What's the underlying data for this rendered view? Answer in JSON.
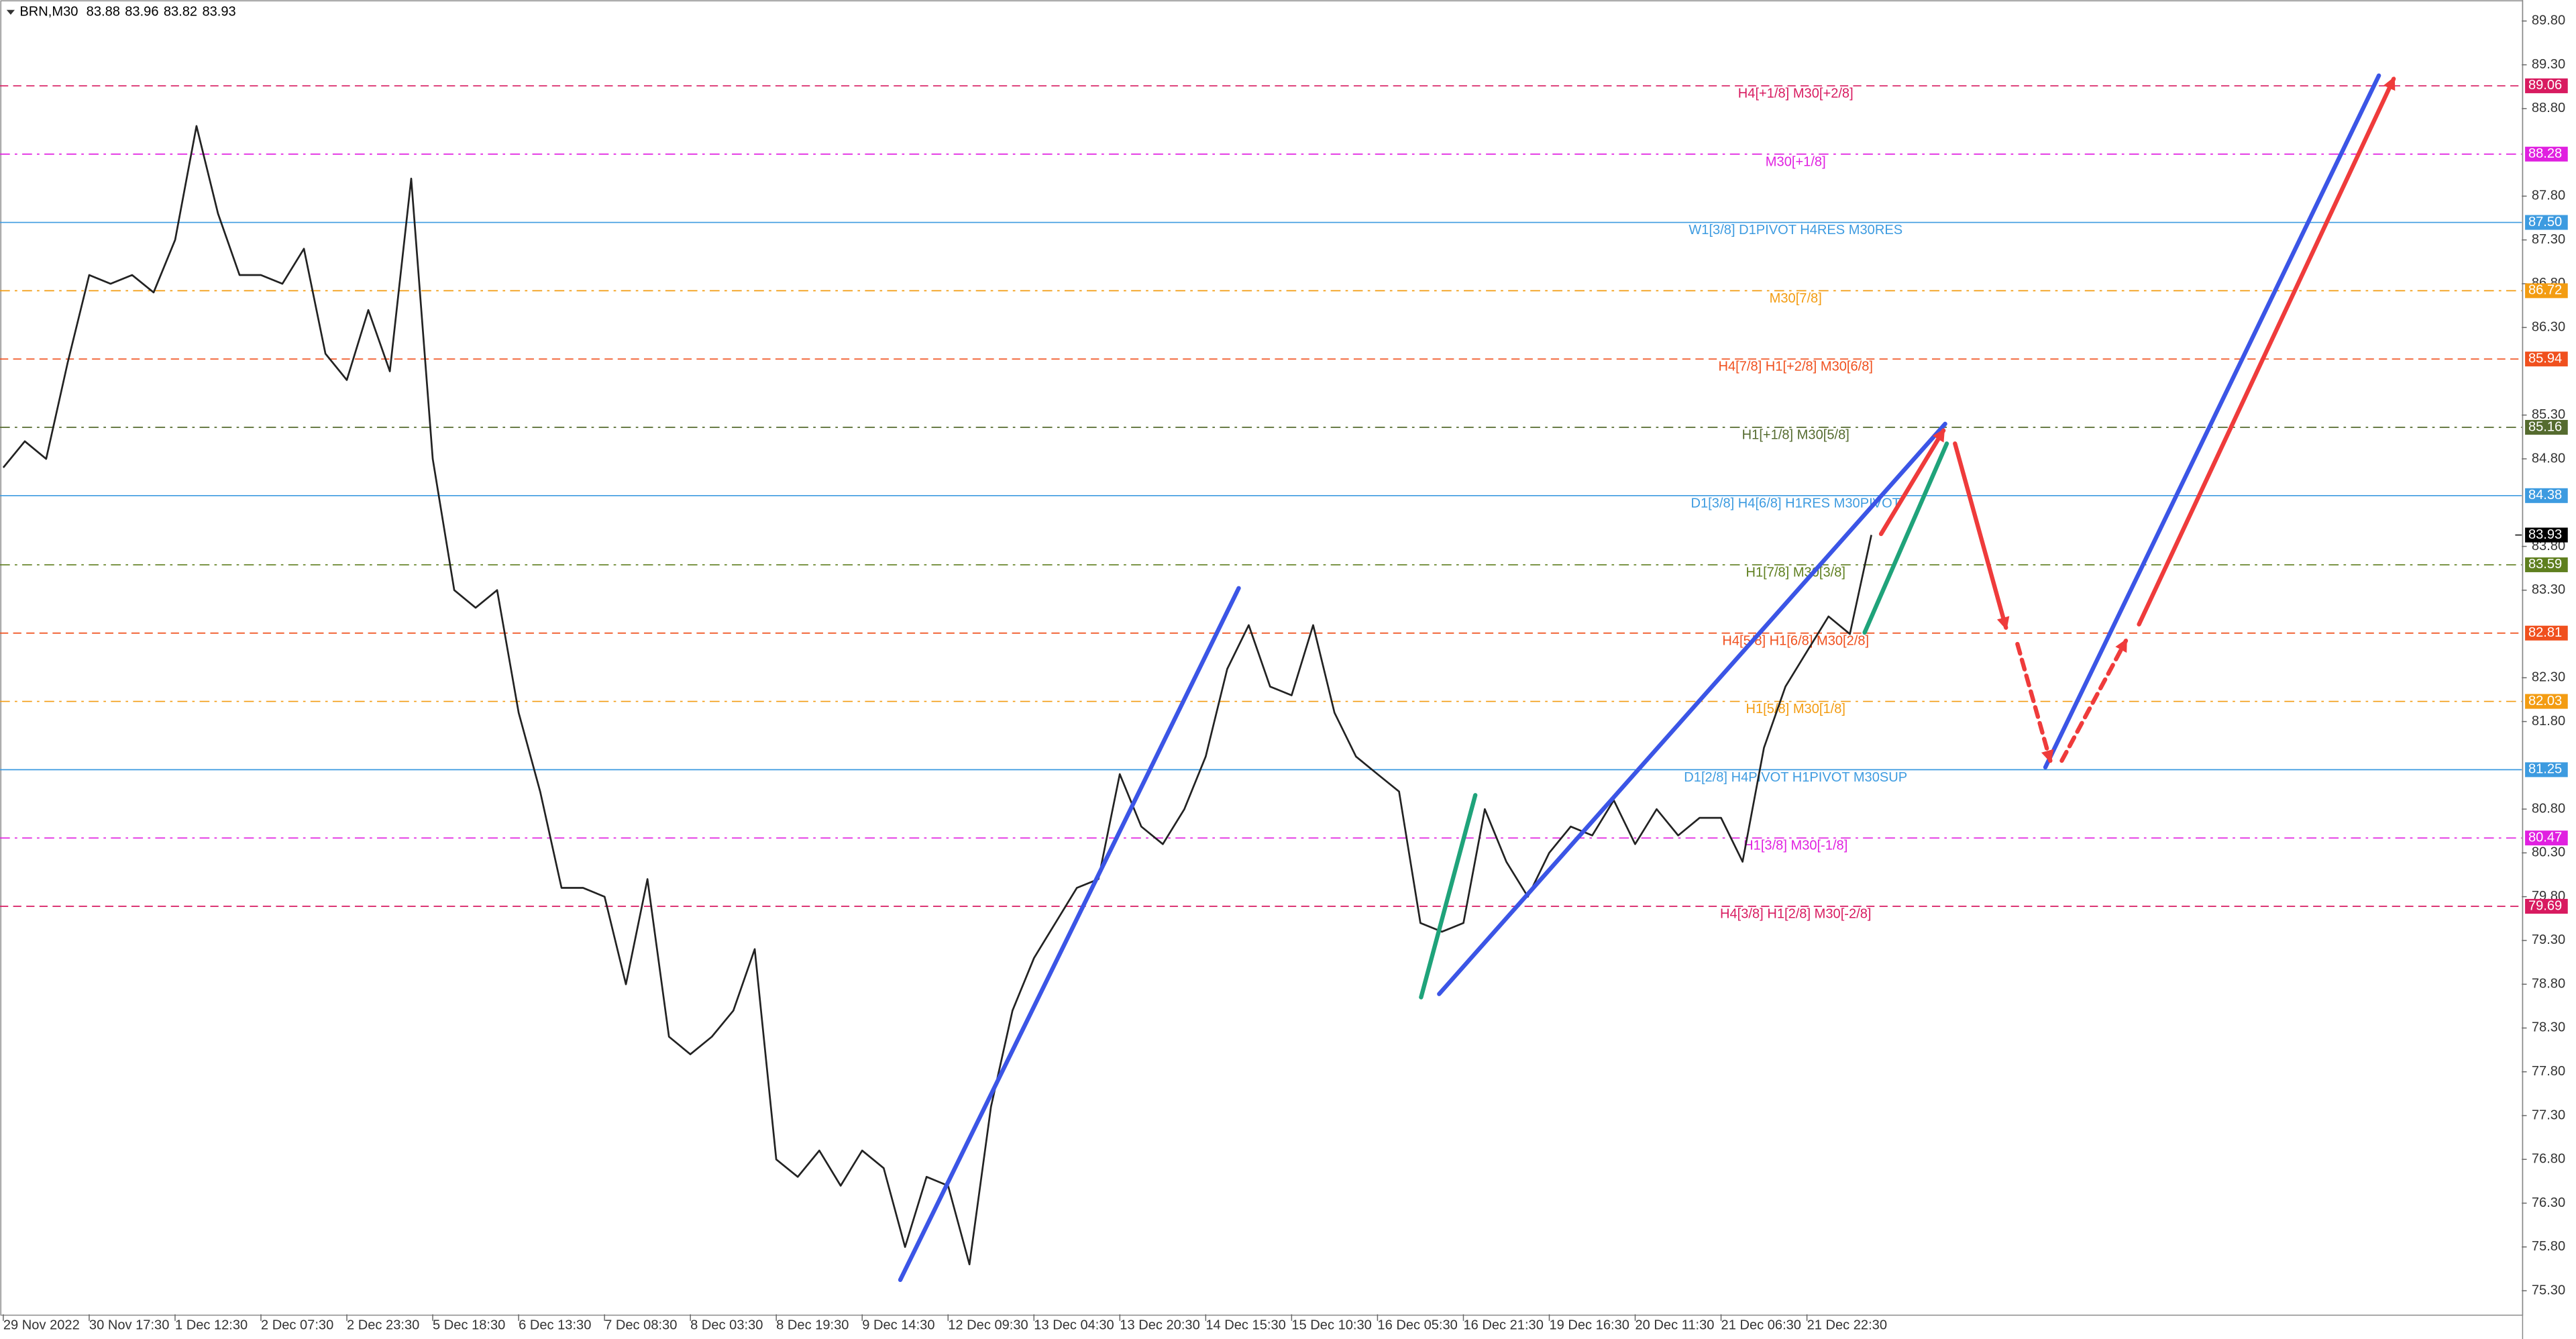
{
  "chart_data": {
    "type": "line",
    "title": "BRN,M30",
    "last_bar": {
      "open": 83.88,
      "high": 83.96,
      "low": 83.82,
      "close": 83.93
    },
    "current_price": 83.93,
    "ylim": [
      75.03,
      90.04
    ],
    "yticks": [
      {
        "value": 89.8,
        "label": "89.80"
      },
      {
        "value": 89.3,
        "label": "89.30"
      },
      {
        "value": 88.8,
        "label": "88.80"
      },
      {
        "value": 87.8,
        "label": "87.80"
      },
      {
        "value": 87.3,
        "label": "87.30"
      },
      {
        "value": 86.8,
        "label": "86.80"
      },
      {
        "value": 86.3,
        "label": "86.30"
      },
      {
        "value": 85.3,
        "label": "85.30"
      },
      {
        "value": 84.8,
        "label": "84.80"
      },
      {
        "value": 83.8,
        "label": "83.80"
      },
      {
        "value": 83.3,
        "label": "83.30"
      },
      {
        "value": 82.3,
        "label": "82.30"
      },
      {
        "value": 81.8,
        "label": "81.80"
      },
      {
        "value": 80.8,
        "label": "80.80"
      },
      {
        "value": 80.3,
        "label": "80.30"
      },
      {
        "value": 79.8,
        "label": "79.80"
      },
      {
        "value": 79.3,
        "label": "79.30"
      },
      {
        "value": 78.8,
        "label": "78.80"
      },
      {
        "value": 78.3,
        "label": "78.30"
      },
      {
        "value": 77.8,
        "label": "77.80"
      },
      {
        "value": 77.3,
        "label": "77.30"
      },
      {
        "value": 76.8,
        "label": "76.80"
      },
      {
        "value": 76.3,
        "label": "76.30"
      },
      {
        "value": 75.8,
        "label": "75.80"
      },
      {
        "value": 75.3,
        "label": "75.30"
      }
    ],
    "categories": [
      "29 Nov 2022",
      null,
      null,
      null,
      "30 Nov 17:30",
      null,
      null,
      null,
      "1 Dec 12:30",
      null,
      null,
      null,
      "2 Dec 07:30",
      null,
      null,
      null,
      "2 Dec 23:30",
      null,
      null,
      null,
      "5 Dec 18:30",
      null,
      null,
      null,
      "6 Dec 13:30",
      null,
      null,
      null,
      "7 Dec 08:30",
      null,
      null,
      null,
      "8 Dec 03:30",
      null,
      null,
      null,
      "8 Dec 19:30",
      null,
      null,
      null,
      "9 Dec 14:30",
      null,
      null,
      null,
      "12 Dec 09:30",
      null,
      null,
      null,
      "13 Dec 04:30",
      null,
      null,
      null,
      "13 Dec 20:30",
      null,
      null,
      null,
      "14 Dec 15:30",
      null,
      null,
      null,
      "15 Dec 10:30",
      null,
      null,
      null,
      "16 Dec 05:30",
      null,
      null,
      null,
      "16 Dec 21:30",
      null,
      null,
      null,
      "19 Dec 16:30",
      null,
      null,
      null,
      "20 Dec 11:30",
      null,
      null,
      null,
      "21 Dec 06:30",
      null,
      null,
      null,
      "21 Dec 22:30",
      null,
      null,
      null
    ],
    "series": [
      {
        "name": "BRN",
        "color": "#222222",
        "values": [
          84.7,
          85.0,
          84.8,
          85.9,
          86.9,
          86.8,
          86.9,
          86.7,
          87.3,
          88.6,
          87.6,
          86.9,
          86.9,
          86.8,
          87.2,
          86.0,
          85.7,
          86.5,
          85.8,
          88.0,
          84.8,
          83.3,
          83.1,
          83.3,
          81.9,
          81.0,
          79.9,
          79.9,
          79.8,
          78.8,
          80.0,
          78.2,
          78.0,
          78.2,
          78.5,
          79.2,
          76.8,
          76.6,
          76.9,
          76.5,
          76.9,
          76.7,
          75.8,
          76.6,
          76.5,
          75.6,
          77.4,
          78.5,
          79.1,
          79.5,
          79.9,
          80.0,
          81.2,
          80.6,
          80.4,
          80.8,
          81.4,
          82.4,
          82.9,
          82.2,
          82.1,
          82.9,
          81.9,
          81.4,
          81.2,
          81.0,
          79.5,
          79.4,
          79.5,
          80.8,
          80.2,
          79.8,
          80.3,
          80.6,
          80.5,
          80.9,
          80.4,
          80.8,
          80.5,
          80.7,
          80.7,
          80.2,
          81.5,
          82.2,
          82.6,
          83.0,
          82.8,
          83.93
        ]
      }
    ],
    "levels": [
      {
        "label": "H4[+1/8] M30[+2/8]",
        "price": 89.06,
        "color": "#d81b60",
        "style": "dash"
      },
      {
        "label": "M30[+1/8]",
        "price": 88.28,
        "color": "#e020e0",
        "style": "dashdot"
      },
      {
        "label": "W1[3/8] D1PIVOT H4RES M30RES",
        "price": {
          "value": 87.5,
          "label": "87.50"
        },
        "color": "#3d9be0",
        "style": "solid"
      },
      {
        "label": "M30[7/8]",
        "price": 86.72,
        "color": "#f39c12",
        "style": "dashdot"
      },
      {
        "label": "H4[7/8] H1[+2/8] M30[6/8]",
        "price": 85.94,
        "color": "#f0501e",
        "style": "dash"
      },
      {
        "label": "H1[+1/8] M30[5/8]",
        "price": 85.16,
        "color": "#556b2f",
        "style": "dashdot"
      },
      {
        "label": "D1[3/8] H4[6/8] H1RES M30PIVOT",
        "price": 84.38,
        "color": "#3d9be0",
        "style": "solid"
      },
      {
        "label": "H1[7/8] M30[3/8]",
        "price": 83.59,
        "color": "#5f7f1f",
        "style": "dashdot"
      },
      {
        "label": "H4[5/8] H1[6/8] M30[2/8]",
        "price": 82.81,
        "color": "#f0501e",
        "style": "dash"
      },
      {
        "label": "H1[5/8] M30[1/8]",
        "price": 82.03,
        "color": "#f39c12",
        "style": "dashdot"
      },
      {
        "label": "D1[2/8] H4PIVOT H1PIVOT M30SUP",
        "price": 81.25,
        "color": "#3d9be0",
        "style": "solid"
      },
      {
        "label": "H1[3/8] M30[-1/8]",
        "price": 80.47,
        "color": "#e020e0",
        "style": "dashdot"
      },
      {
        "label": "H4[3/8] H1[2/8] M30[-2/8]",
        "price": 79.69,
        "color": "#d81b60",
        "style": "dash"
      }
    ]
  }
}
